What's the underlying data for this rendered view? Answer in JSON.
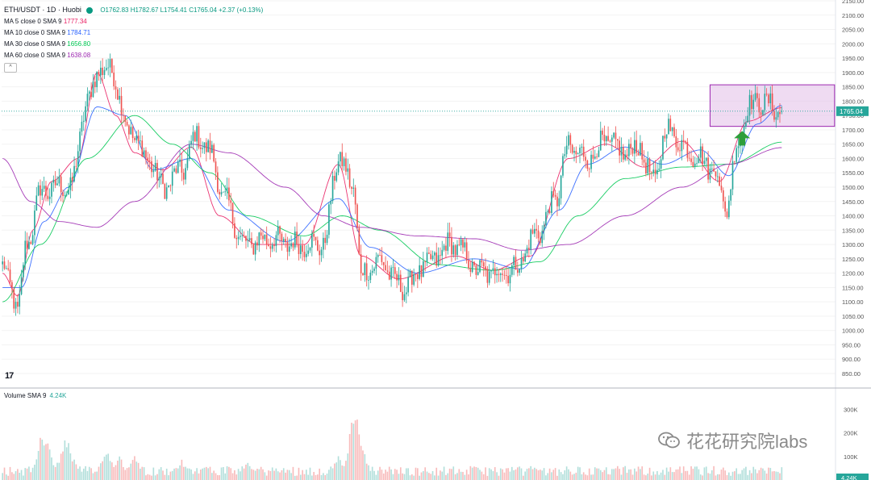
{
  "header": {
    "symbol": "ETH/USDT · 1D · Huobi",
    "ohlc": "O1762.83 H1782.67 L1754.41 C1765.04 +2.37 (+0.13%)"
  },
  "indicators": [
    {
      "label": "MA 5 close 0 SMA 9",
      "value": "1777.34",
      "color": "#e91e63"
    },
    {
      "label": "MA 10 close 0 SMA 9",
      "value": "1784.71",
      "color": "#2962ff"
    },
    {
      "label": "MA 30 close 0 SMA 9",
      "value": "1656.80",
      "color": "#00c853"
    },
    {
      "label": "MA 60 close 0 SMA 9",
      "value": "1638.08",
      "color": "#9c27b0"
    }
  ],
  "collapse_button": "^",
  "volume_label": "Volume SMA 9",
  "volume_value": "4.24K",
  "price_tag": "1765.04",
  "volume_tag": "4.24K",
  "tv_logo": "17",
  "watermark": "花花研究院labs",
  "colors": {
    "up": "#26a69a",
    "down": "#ef5350",
    "up_vol": "#b2dfdb",
    "down_vol": "#f8bbbb",
    "highlight_box": "#e1bee7",
    "arrow": "#2e9e3a"
  },
  "chart_data": {
    "type": "candlestick",
    "symbol": "ETH/USDT",
    "interval": "1D",
    "exchange": "Huobi",
    "last_price": 1765.04,
    "y_axis_ticks": [
      2150,
      2100,
      2050,
      2000,
      1950,
      1900,
      1850,
      1800,
      1750,
      1700,
      1650,
      1600,
      1550,
      1500,
      1450,
      1400,
      1350,
      1300,
      1250,
      1200,
      1150,
      1100,
      1050,
      1000,
      950,
      900,
      850
    ],
    "ylim": [
      820,
      2160
    ],
    "volume_ticks": [
      "300K",
      "200K",
      "100K"
    ],
    "volume_tick_values": [
      300000,
      200000,
      100000
    ],
    "close_anchors": [
      [
        0,
        1230
      ],
      [
        4,
        1150
      ],
      [
        8,
        1080
      ],
      [
        13,
        1300
      ],
      [
        20,
        1480
      ],
      [
        28,
        1500
      ],
      [
        36,
        1500
      ],
      [
        45,
        1800
      ],
      [
        52,
        1920
      ],
      [
        58,
        1900
      ],
      [
        67,
        1700
      ],
      [
        77,
        1600
      ],
      [
        85,
        1500
      ],
      [
        95,
        1560
      ],
      [
        103,
        1680
      ],
      [
        110,
        1620
      ],
      [
        118,
        1450
      ],
      [
        128,
        1300
      ],
      [
        140,
        1320
      ],
      [
        155,
        1300
      ],
      [
        170,
        1300
      ],
      [
        178,
        1600
      ],
      [
        186,
        1500
      ],
      [
        190,
        1200
      ],
      [
        200,
        1240
      ],
      [
        212,
        1150
      ],
      [
        225,
        1230
      ],
      [
        238,
        1300
      ],
      [
        255,
        1200
      ],
      [
        270,
        1210
      ],
      [
        285,
        1350
      ],
      [
        293,
        1460
      ],
      [
        300,
        1640
      ],
      [
        310,
        1600
      ],
      [
        320,
        1660
      ],
      [
        330,
        1620
      ],
      [
        337,
        1640
      ],
      [
        345,
        1520
      ],
      [
        352,
        1700
      ],
      [
        365,
        1620
      ],
      [
        378,
        1560
      ],
      [
        383,
        1420
      ],
      [
        390,
        1650
      ],
      [
        395,
        1780
      ],
      [
        402,
        1800
      ],
      [
        410,
        1770
      ],
      [
        413,
        1765
      ]
    ],
    "ma_anchors": {
      "ma5": [
        [
          0,
          1200
        ],
        [
          8,
          1120
        ],
        [
          16,
          1350
        ],
        [
          26,
          1520
        ],
        [
          40,
          1600
        ],
        [
          50,
          1900
        ],
        [
          60,
          1750
        ],
        [
          70,
          1620
        ],
        [
          85,
          1560
        ],
        [
          100,
          1640
        ],
        [
          115,
          1400
        ],
        [
          135,
          1300
        ],
        [
          160,
          1300
        ],
        [
          178,
          1580
        ],
        [
          190,
          1260
        ],
        [
          210,
          1180
        ],
        [
          240,
          1260
        ],
        [
          260,
          1210
        ],
        [
          280,
          1260
        ],
        [
          300,
          1600
        ],
        [
          320,
          1650
        ],
        [
          340,
          1570
        ],
        [
          360,
          1660
        ],
        [
          380,
          1520
        ],
        [
          395,
          1730
        ],
        [
          413,
          1777
        ]
      ],
      "ma10": [
        [
          0,
          1150
        ],
        [
          10,
          1150
        ],
        [
          22,
          1380
        ],
        [
          35,
          1500
        ],
        [
          50,
          1780
        ],
        [
          65,
          1750
        ],
        [
          80,
          1560
        ],
        [
          100,
          1600
        ],
        [
          120,
          1420
        ],
        [
          150,
          1310
        ],
        [
          178,
          1460
        ],
        [
          195,
          1290
        ],
        [
          220,
          1200
        ],
        [
          250,
          1250
        ],
        [
          275,
          1215
        ],
        [
          295,
          1420
        ],
        [
          310,
          1580
        ],
        [
          330,
          1640
        ],
        [
          350,
          1580
        ],
        [
          370,
          1630
        ],
        [
          385,
          1540
        ],
        [
          400,
          1720
        ],
        [
          413,
          1785
        ]
      ],
      "ma30": [
        [
          0,
          1100
        ],
        [
          20,
          1300
        ],
        [
          45,
          1600
        ],
        [
          70,
          1750
        ],
        [
          90,
          1650
        ],
        [
          110,
          1550
        ],
        [
          130,
          1400
        ],
        [
          160,
          1330
        ],
        [
          180,
          1400
        ],
        [
          200,
          1350
        ],
        [
          230,
          1230
        ],
        [
          260,
          1210
        ],
        [
          285,
          1240
        ],
        [
          305,
          1400
        ],
        [
          330,
          1530
        ],
        [
          360,
          1570
        ],
        [
          385,
          1580
        ],
        [
          413,
          1657
        ]
      ],
      "ma60": [
        [
          0,
          1600
        ],
        [
          15,
          1450
        ],
        [
          30,
          1380
        ],
        [
          50,
          1360
        ],
        [
          70,
          1450
        ],
        [
          100,
          1650
        ],
        [
          120,
          1620
        ],
        [
          150,
          1500
        ],
        [
          170,
          1400
        ],
        [
          190,
          1360
        ],
        [
          220,
          1330
        ],
        [
          250,
          1320
        ],
        [
          275,
          1280
        ],
        [
          300,
          1300
        ],
        [
          330,
          1400
        ],
        [
          360,
          1500
        ],
        [
          385,
          1580
        ],
        [
          413,
          1638
        ]
      ]
    },
    "volume_spikes": [
      [
        21,
        0.62
      ],
      [
        23,
        0.55
      ],
      [
        33,
        0.49
      ],
      [
        35,
        0.45
      ],
      [
        55,
        0.4
      ],
      [
        62,
        0.3
      ],
      [
        70,
        0.33
      ],
      [
        95,
        0.25
      ],
      [
        108,
        0.2
      ],
      [
        130,
        0.22
      ],
      [
        178,
        0.3
      ],
      [
        187,
        1.0
      ],
      [
        190,
        0.45
      ],
      [
        225,
        0.12
      ],
      [
        285,
        0.14
      ],
      [
        375,
        0.1
      ]
    ],
    "highlight_box": {
      "start_bar": 375,
      "end_bar": 441,
      "price_low": 1712,
      "price_high": 1857
    },
    "arrow": {
      "bar": 392,
      "price_tip": 1696
    }
  }
}
